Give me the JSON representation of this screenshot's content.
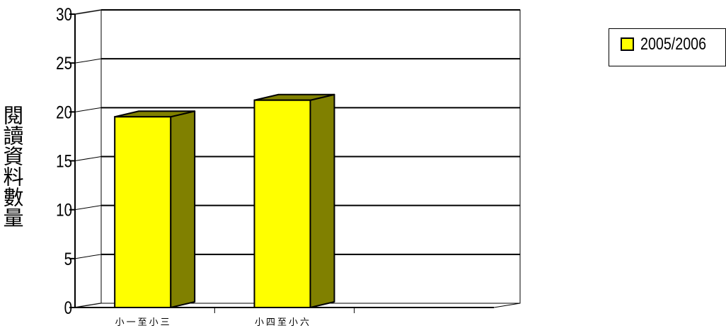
{
  "chart_data": {
    "type": "bar",
    "categories": [
      "小一至小三",
      "小四至小六",
      ""
    ],
    "series": [
      {
        "name": "2005/2006",
        "values": [
          19.5,
          21.2,
          null
        ],
        "color": "#ffff00",
        "side_color": "#808000"
      }
    ],
    "title": "",
    "xlabel": "",
    "ylabel": "閱讀資料數量",
    "ylim": [
      0,
      30
    ],
    "yticks": [
      0,
      5,
      10,
      15,
      20,
      25,
      30
    ],
    "grid": true,
    "legend_position": "top-right",
    "three_d": true
  }
}
